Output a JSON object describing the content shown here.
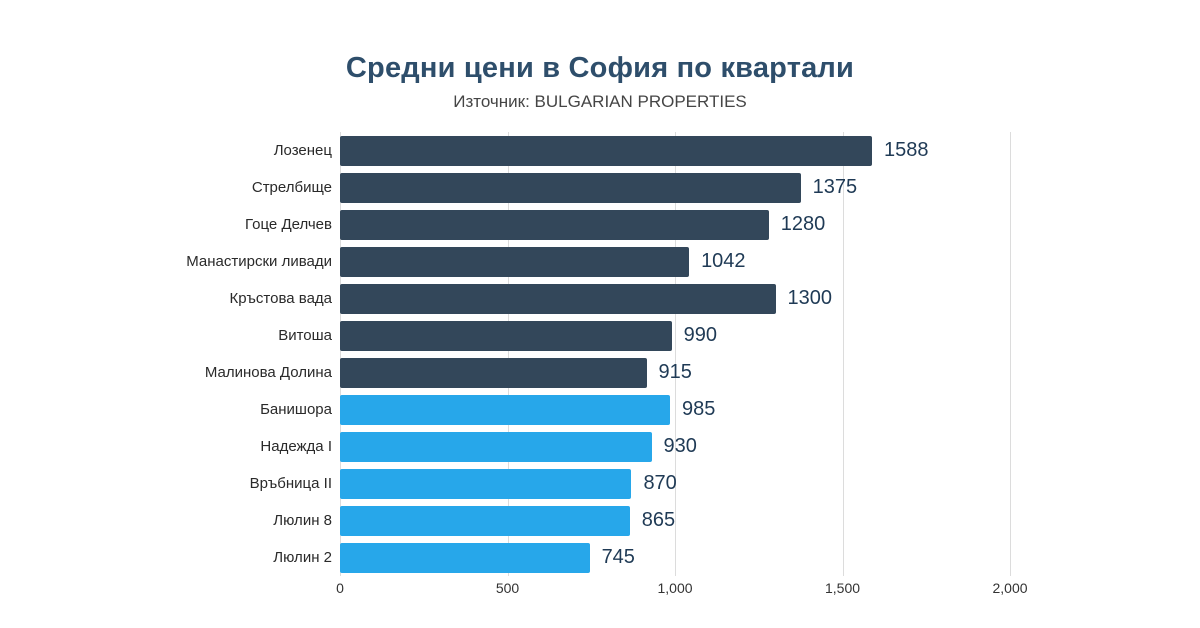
{
  "chart_data": {
    "type": "bar",
    "orientation": "horizontal",
    "title": "Средни цени в София по квартали",
    "subtitle": "Източник: BULGARIAN PROPERTIES",
    "categories": [
      "Лозенец",
      "Стрелбище",
      "Гоце Делчев",
      "Манастирски ливади",
      "Кръстова вада",
      "Витоша",
      "Малинова Долина",
      "Банишора",
      "Надежда I",
      "Връбница II",
      "Люлин 8",
      "Люлин 2"
    ],
    "values": [
      1588,
      1375,
      1280,
      1042,
      1300,
      990,
      915,
      985,
      930,
      870,
      865,
      745
    ],
    "bar_color_keys": [
      "dark",
      "dark",
      "dark",
      "dark",
      "dark",
      "dark",
      "dark",
      "blue",
      "blue",
      "blue",
      "blue",
      "blue"
    ],
    "colors": {
      "dark": "#33475a",
      "blue": "#27a7ea",
      "title": "#2e4e6b",
      "value_label": "#1f3a55",
      "gridline": "#dcdcdc"
    },
    "xlim": [
      0,
      2000
    ],
    "x_ticks": [
      0,
      500,
      1000,
      1500,
      2000
    ],
    "x_tick_labels": [
      "0",
      "500",
      "1,000",
      "1,500",
      "2,000"
    ],
    "grid": true,
    "legend": "none",
    "background": "#ffffff"
  }
}
